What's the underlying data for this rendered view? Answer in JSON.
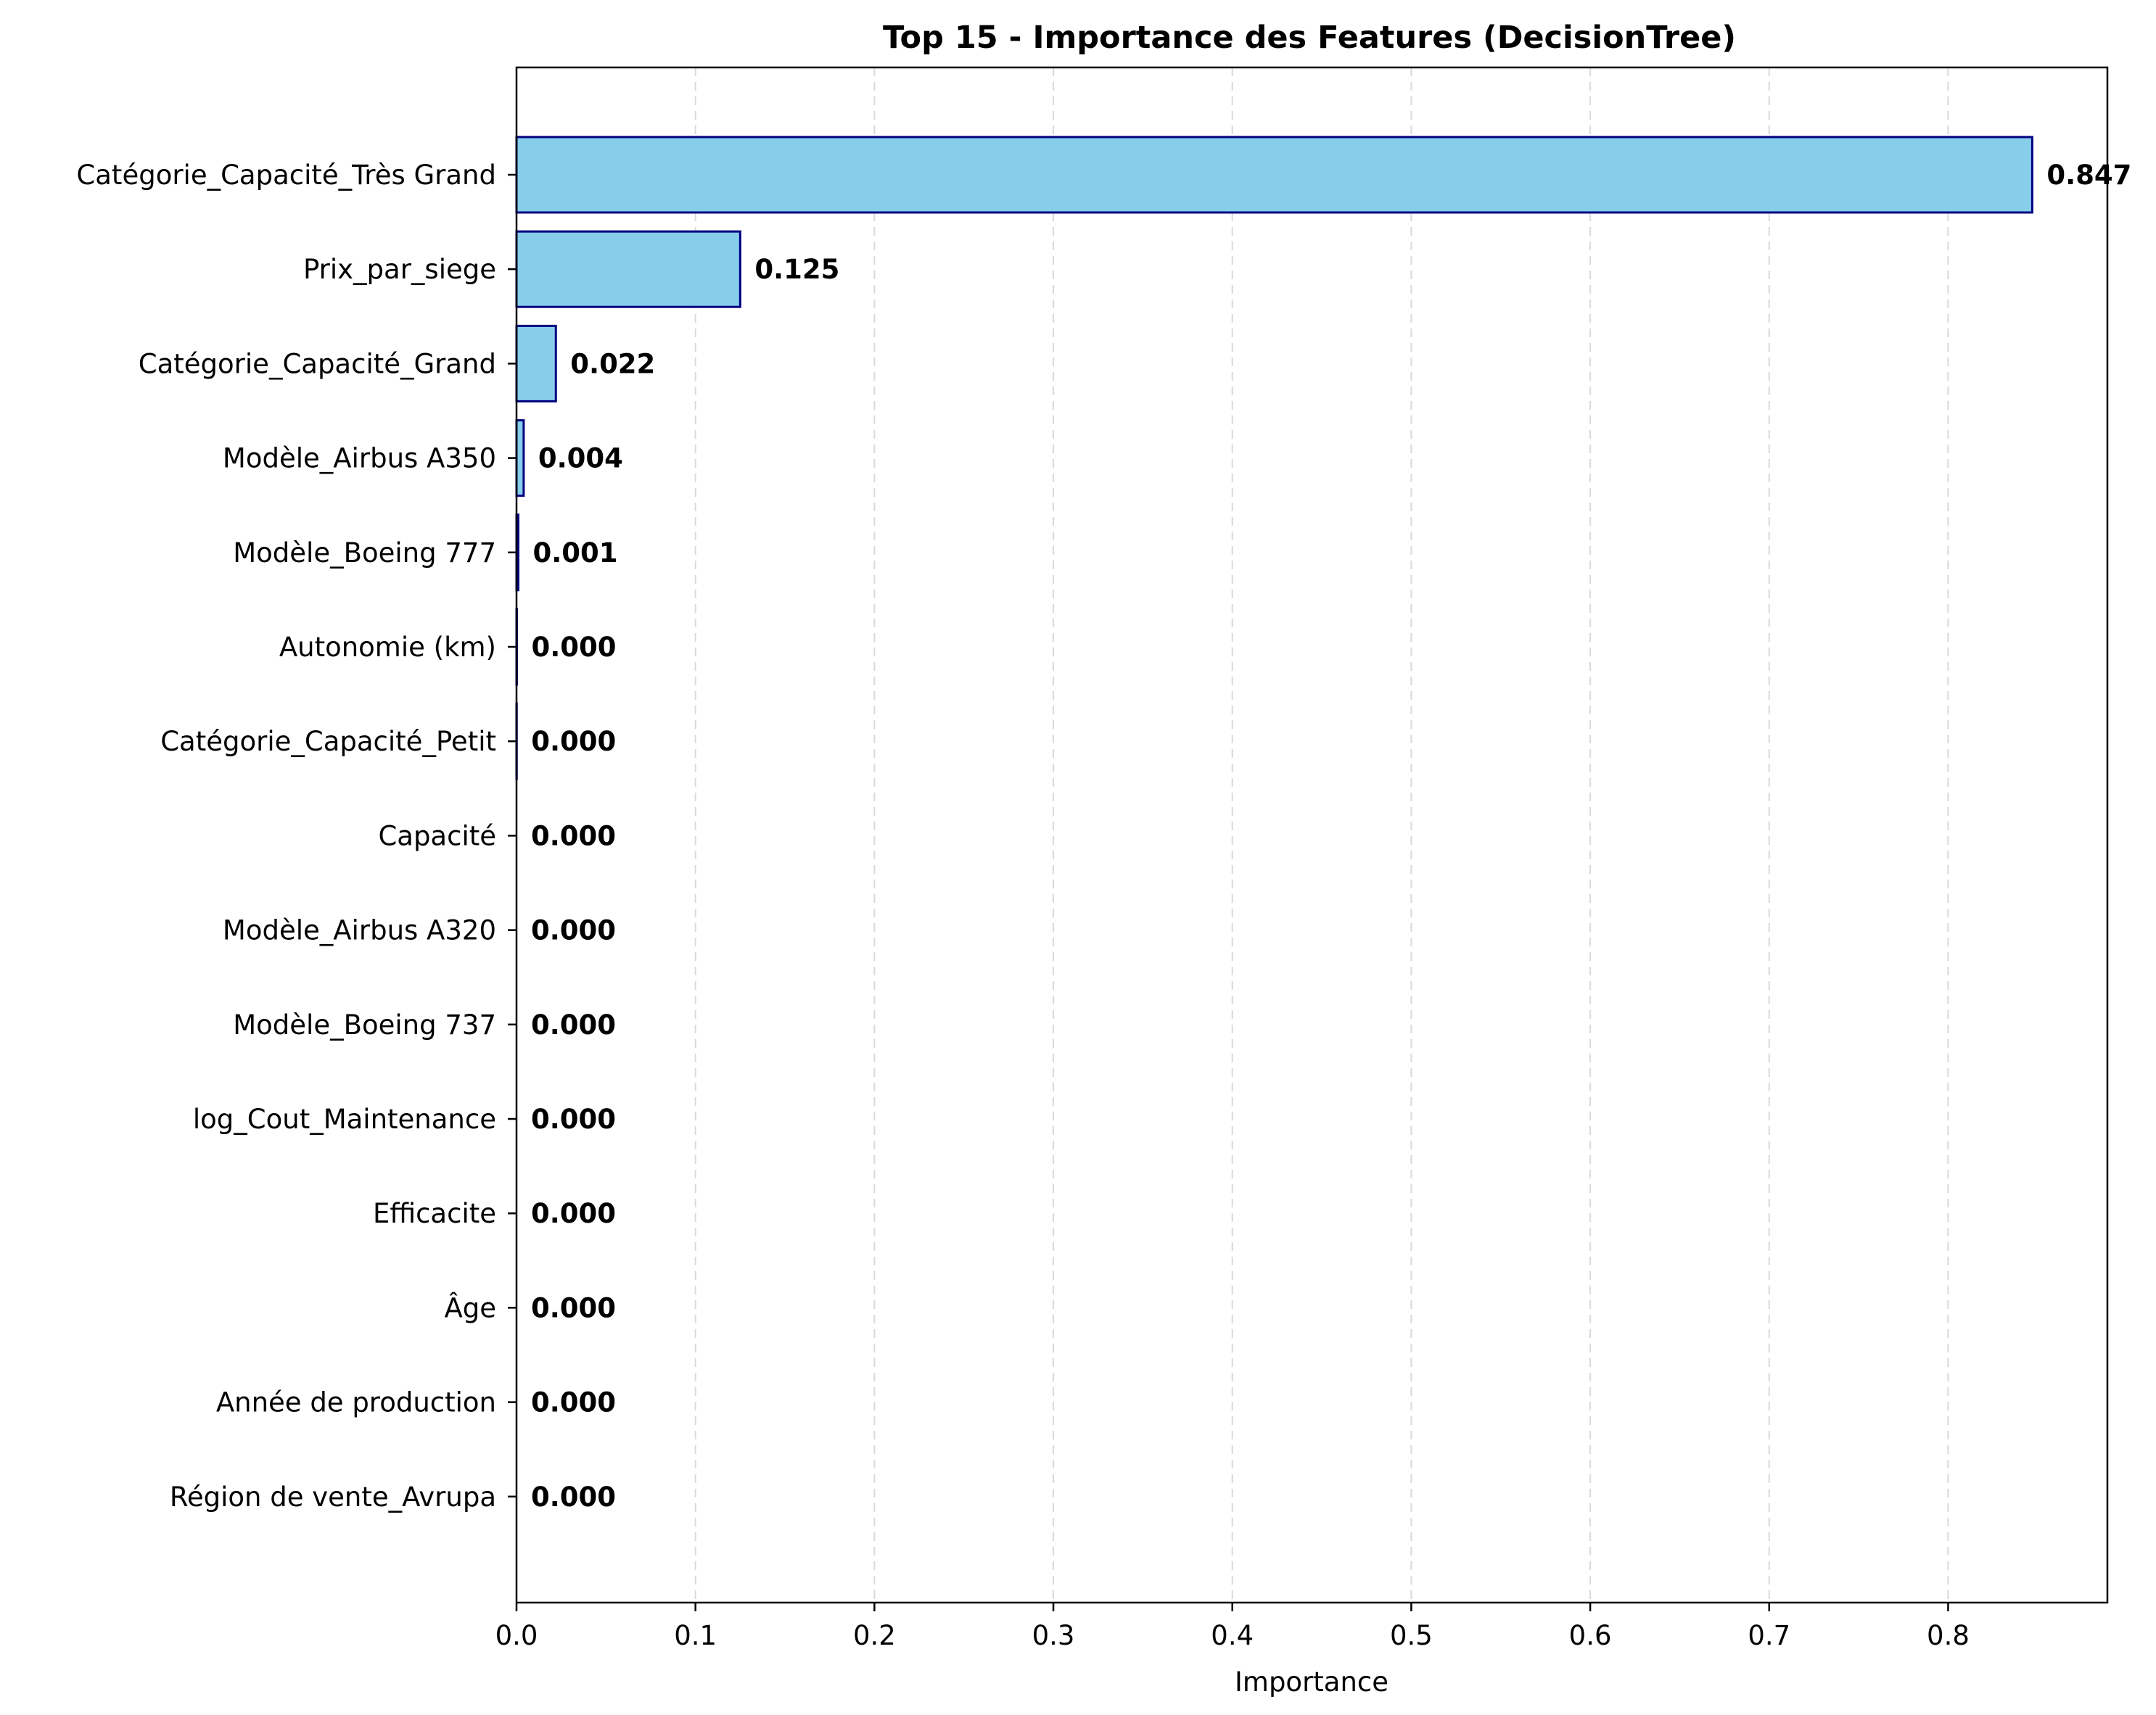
{
  "chart_data": {
    "type": "bar",
    "orientation": "horizontal",
    "title": "Top 15 - Importance des Features (DecisionTree)",
    "xlabel": "Importance",
    "ylabel": "",
    "xlim": [
      0,
      0.889
    ],
    "xticks": [
      0.0,
      0.1,
      0.2,
      0.3,
      0.4,
      0.5,
      0.6,
      0.7,
      0.8
    ],
    "xtick_labels": [
      "0.0",
      "0.1",
      "0.2",
      "0.3",
      "0.4",
      "0.5",
      "0.6",
      "0.7",
      "0.8"
    ],
    "grid": "x-axis dashed",
    "categories": [
      "Catégorie_Capacité_Très Grand",
      "Prix_par_siege",
      "Catégorie_Capacité_Grand",
      "Modèle_Airbus A350",
      "Modèle_Boeing 777",
      "Autonomie (km)",
      "Catégorie_Capacité_Petit",
      "Capacité",
      "Modèle_Airbus A320",
      "Modèle_Boeing 737",
      "log_Cout_Maintenance",
      "Efficacite",
      "Âge",
      "Année de production",
      "Région de vente_Avrupa"
    ],
    "values": [
      0.847,
      0.125,
      0.022,
      0.004,
      0.001,
      0.0002,
      0.0001,
      0,
      0,
      0,
      0,
      0,
      0,
      0,
      0
    ],
    "value_labels": [
      "0.847",
      "0.125",
      "0.022",
      "0.004",
      "0.001",
      "0.000",
      "0.000",
      "0.000",
      "0.000",
      "0.000",
      "0.000",
      "0.000",
      "0.000",
      "0.000",
      "0.000"
    ],
    "colors": {
      "bar_fill": "#87ceeb",
      "bar_edge": "#000080",
      "grid": "#d9d9d9",
      "axis": "#000000"
    }
  }
}
